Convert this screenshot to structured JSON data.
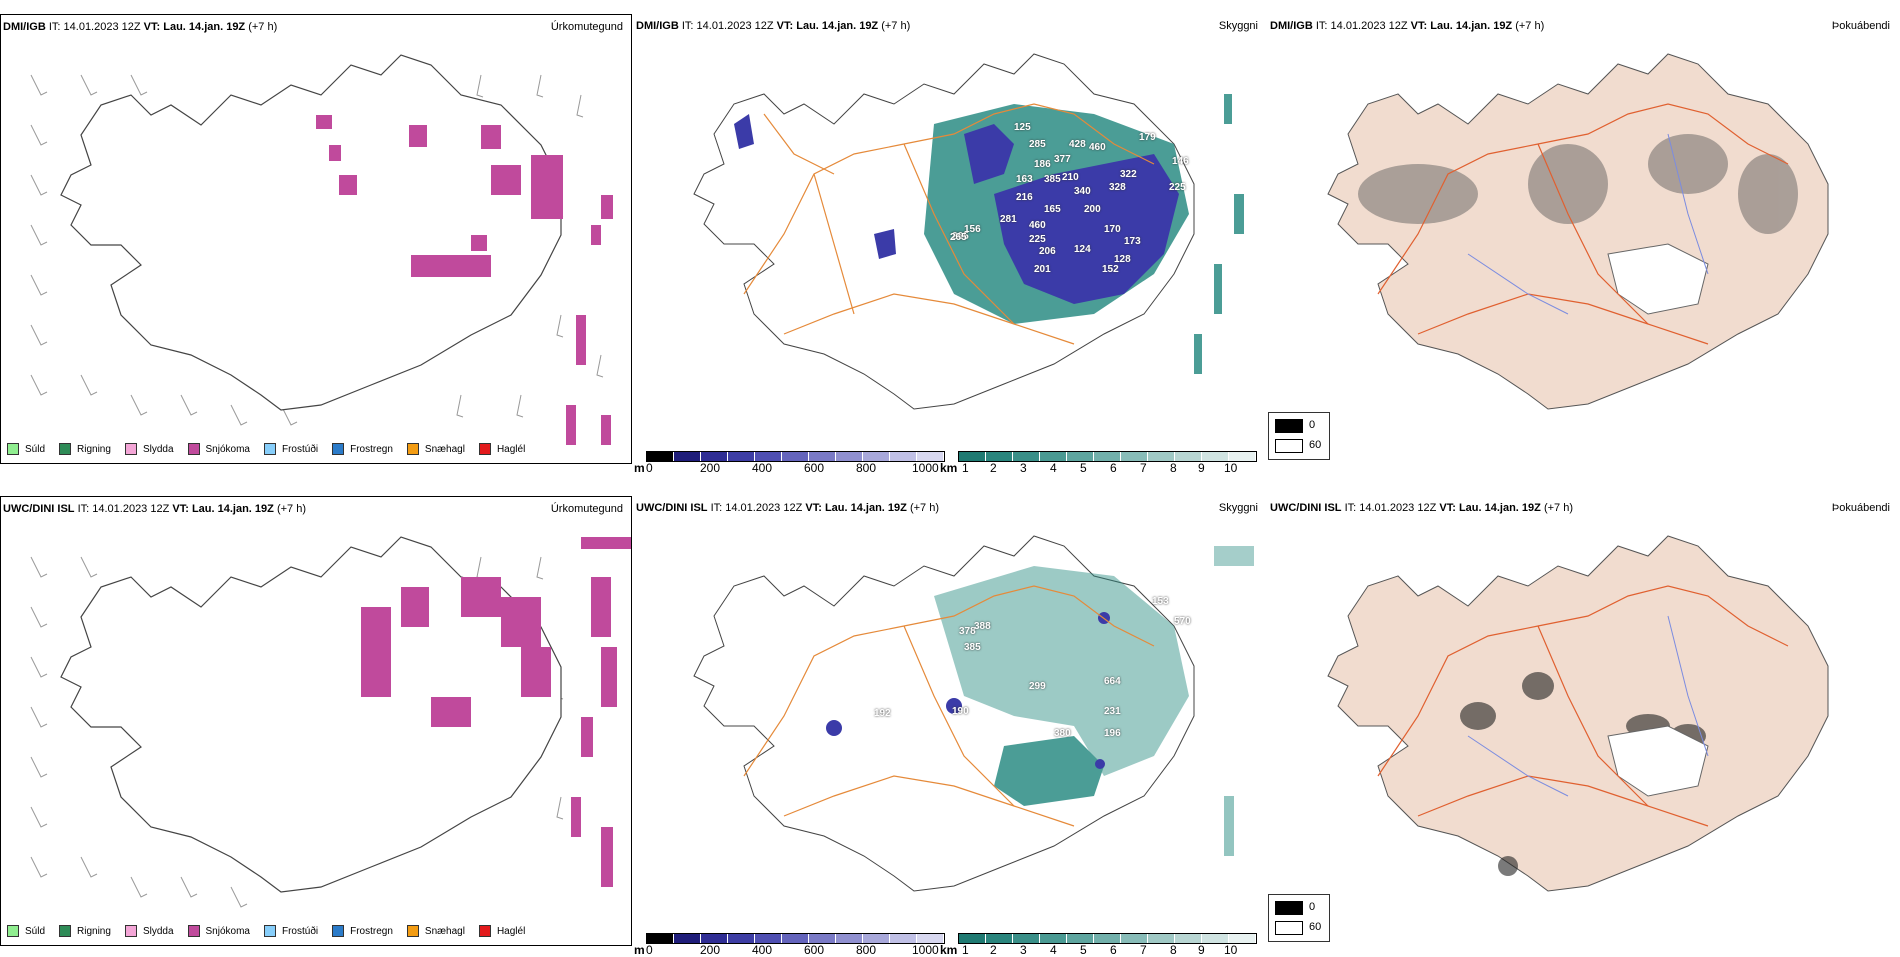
{
  "rows": [
    {
      "model": "DMI/IGB",
      "it_label": "IT:",
      "it_value": "14.01.2023 12Z",
      "vt_label": "VT:",
      "vt_value": "Lau. 14.jan. 19Z",
      "offset": "(+7 h)",
      "panels": {
        "precip_type": "Úrkomutegund",
        "cloud_base": "Skyggni",
        "cloud_cover": "Þokuábendi"
      },
      "snow_labels": [
        "125",
        "285",
        "186",
        "163",
        "385",
        "216",
        "377",
        "428",
        "460",
        "210",
        "179",
        "146",
        "340",
        "328",
        "225",
        "322",
        "265",
        "281",
        "156",
        "460",
        "165",
        "200",
        "225",
        "170",
        "206",
        "124",
        "173",
        "128",
        "152",
        "201",
        "265"
      ]
    },
    {
      "model": "UWC/DINI ISL",
      "it_label": "IT:",
      "it_value": "14.01.2023 12Z",
      "vt_label": "VT:",
      "vt_value": "Lau. 14.jan. 19Z",
      "offset": "(+7 h)",
      "panels": {
        "precip_type": "Úrkomutegund",
        "cloud_base": "Skyggni",
        "cloud_cover": "Þokuábendi"
      },
      "snow_labels": [
        "378",
        "388",
        "385",
        "570",
        "153",
        "299",
        "664",
        "192",
        "190",
        "380",
        "231",
        "196"
      ]
    }
  ],
  "precip_legend": [
    {
      "label": "Súld",
      "color": "#90ee90"
    },
    {
      "label": "Rigning",
      "color": "#2e8b57"
    },
    {
      "label": "Slydda",
      "color": "#f4a6d7"
    },
    {
      "label": "Snjókoma",
      "color": "#c04a9c"
    },
    {
      "label": "Frostúði",
      "color": "#87cefa"
    },
    {
      "label": "Frostregn",
      "color": "#2b7bc9"
    },
    {
      "label": "Snæhagl",
      "color": "#f39c12"
    },
    {
      "label": "Haglél",
      "color": "#e31a1c"
    }
  ],
  "ceiling_scale": {
    "unit": "m",
    "ticks": [
      "0",
      "200",
      "400",
      "600",
      "800",
      "1000"
    ],
    "colors": [
      "#000000",
      "#1f1d7a",
      "#2f2d94",
      "#3d3da4",
      "#4f4fb2",
      "#6464bc",
      "#7a7ac6",
      "#9090d0",
      "#a8a8da",
      "#c0c0e6",
      "#d8d8f0"
    ]
  },
  "visibility_scale": {
    "unit": "km",
    "ticks": [
      "1",
      "2",
      "3",
      "4",
      "5",
      "6",
      "7",
      "8",
      "9",
      "10"
    ],
    "colors": [
      "#1f7a72",
      "#2a857d",
      "#3a8f88",
      "#4a9a93",
      "#5ea59f",
      "#72b0ab",
      "#88bcb8",
      "#a0c9c5",
      "#b8d6d3",
      "#d0e4e2",
      "#e8f2f1"
    ]
  },
  "cloud_legend": {
    "min": "0",
    "max": "60"
  },
  "colors": {
    "snow": "#c04a9c",
    "ceiling": "#3b3ba8",
    "visibility": "#2c8c84",
    "land": "#f1dccf",
    "roads": "#e06030",
    "rivers": "#7b8ce0",
    "orange_roads": "#e58a3a"
  }
}
